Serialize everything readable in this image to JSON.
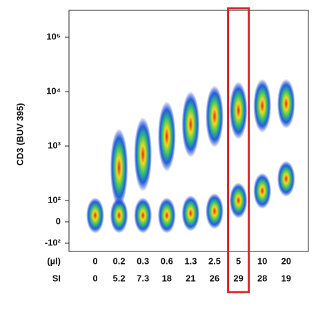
{
  "chart_data": {
    "type": "density",
    "y_label": "CD3 (BUV 395)",
    "yscale": "biexponential",
    "ylim": [
      -160,
      300000
    ],
    "yticks": [
      {
        "value": 100000,
        "label": "10⁵"
      },
      {
        "value": 10000,
        "label": "10⁴"
      },
      {
        "value": 1000,
        "label": "10³"
      },
      {
        "value": 100,
        "label": "10²"
      },
      {
        "value": 0,
        "label": "0"
      },
      {
        "value": -100,
        "label": "-10²"
      }
    ],
    "row_labels": [
      "(µl)",
      "SI"
    ],
    "categories": [
      "0",
      "0.2",
      "0.3",
      "0.6",
      "1.3",
      "2.5",
      "5",
      "10",
      "20"
    ],
    "si_values": [
      0,
      5.2,
      7.3,
      18,
      21,
      26,
      29,
      28,
      19
    ],
    "negative": [
      30,
      30,
      30,
      30,
      40,
      50,
      100,
      150,
      250
    ],
    "positive": [
      null,
      400,
      700,
      1500,
      2500,
      3500,
      4500,
      5500,
      6000
    ],
    "highlight_index": 6,
    "highlight_color": "#d9252a"
  }
}
